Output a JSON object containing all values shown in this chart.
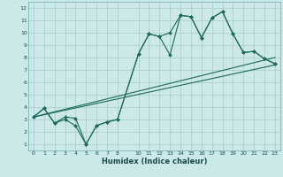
{
  "xlabel": "Humidex (Indice chaleur)",
  "bg_color": "#cce8e8",
  "grid_color": "#aacccc",
  "line_color": "#1a6b5a",
  "xlim": [
    -0.5,
    23.5
  ],
  "ylim": [
    0.5,
    12.5
  ],
  "xticks": [
    0,
    1,
    2,
    3,
    4,
    5,
    6,
    7,
    8,
    10,
    11,
    12,
    13,
    14,
    15,
    16,
    17,
    18,
    19,
    20,
    21,
    22,
    23
  ],
  "yticks": [
    1,
    2,
    3,
    4,
    5,
    6,
    7,
    8,
    9,
    10,
    11,
    12
  ],
  "lines": [
    {
      "x": [
        0,
        1,
        2,
        3,
        4,
        5,
        6,
        7,
        8,
        10,
        11,
        12,
        13,
        14,
        15,
        16,
        17,
        18,
        19,
        20,
        21,
        22,
        23
      ],
      "y": [
        3.2,
        3.9,
        2.7,
        3.2,
        3.1,
        1.0,
        2.5,
        2.8,
        3.0,
        8.3,
        9.9,
        9.7,
        10.0,
        11.4,
        11.3,
        9.6,
        11.2,
        11.7,
        9.9,
        8.4,
        8.5,
        7.9,
        7.5
      ],
      "marker": true
    },
    {
      "x": [
        0,
        1,
        2,
        3,
        4,
        5,
        6,
        7,
        8,
        10,
        11,
        12,
        13,
        14,
        15,
        16,
        17,
        18,
        19,
        20,
        21,
        22,
        23
      ],
      "y": [
        3.2,
        3.9,
        2.7,
        3.0,
        2.5,
        1.0,
        2.5,
        2.8,
        3.0,
        8.3,
        9.9,
        9.7,
        8.2,
        11.4,
        11.3,
        9.6,
        11.2,
        11.7,
        9.9,
        8.4,
        8.5,
        7.9,
        7.5
      ],
      "marker": true
    },
    {
      "x": [
        0,
        23
      ],
      "y": [
        3.2,
        8.0
      ],
      "marker": false
    },
    {
      "x": [
        0,
        23
      ],
      "y": [
        3.2,
        7.4
      ],
      "marker": false
    }
  ]
}
